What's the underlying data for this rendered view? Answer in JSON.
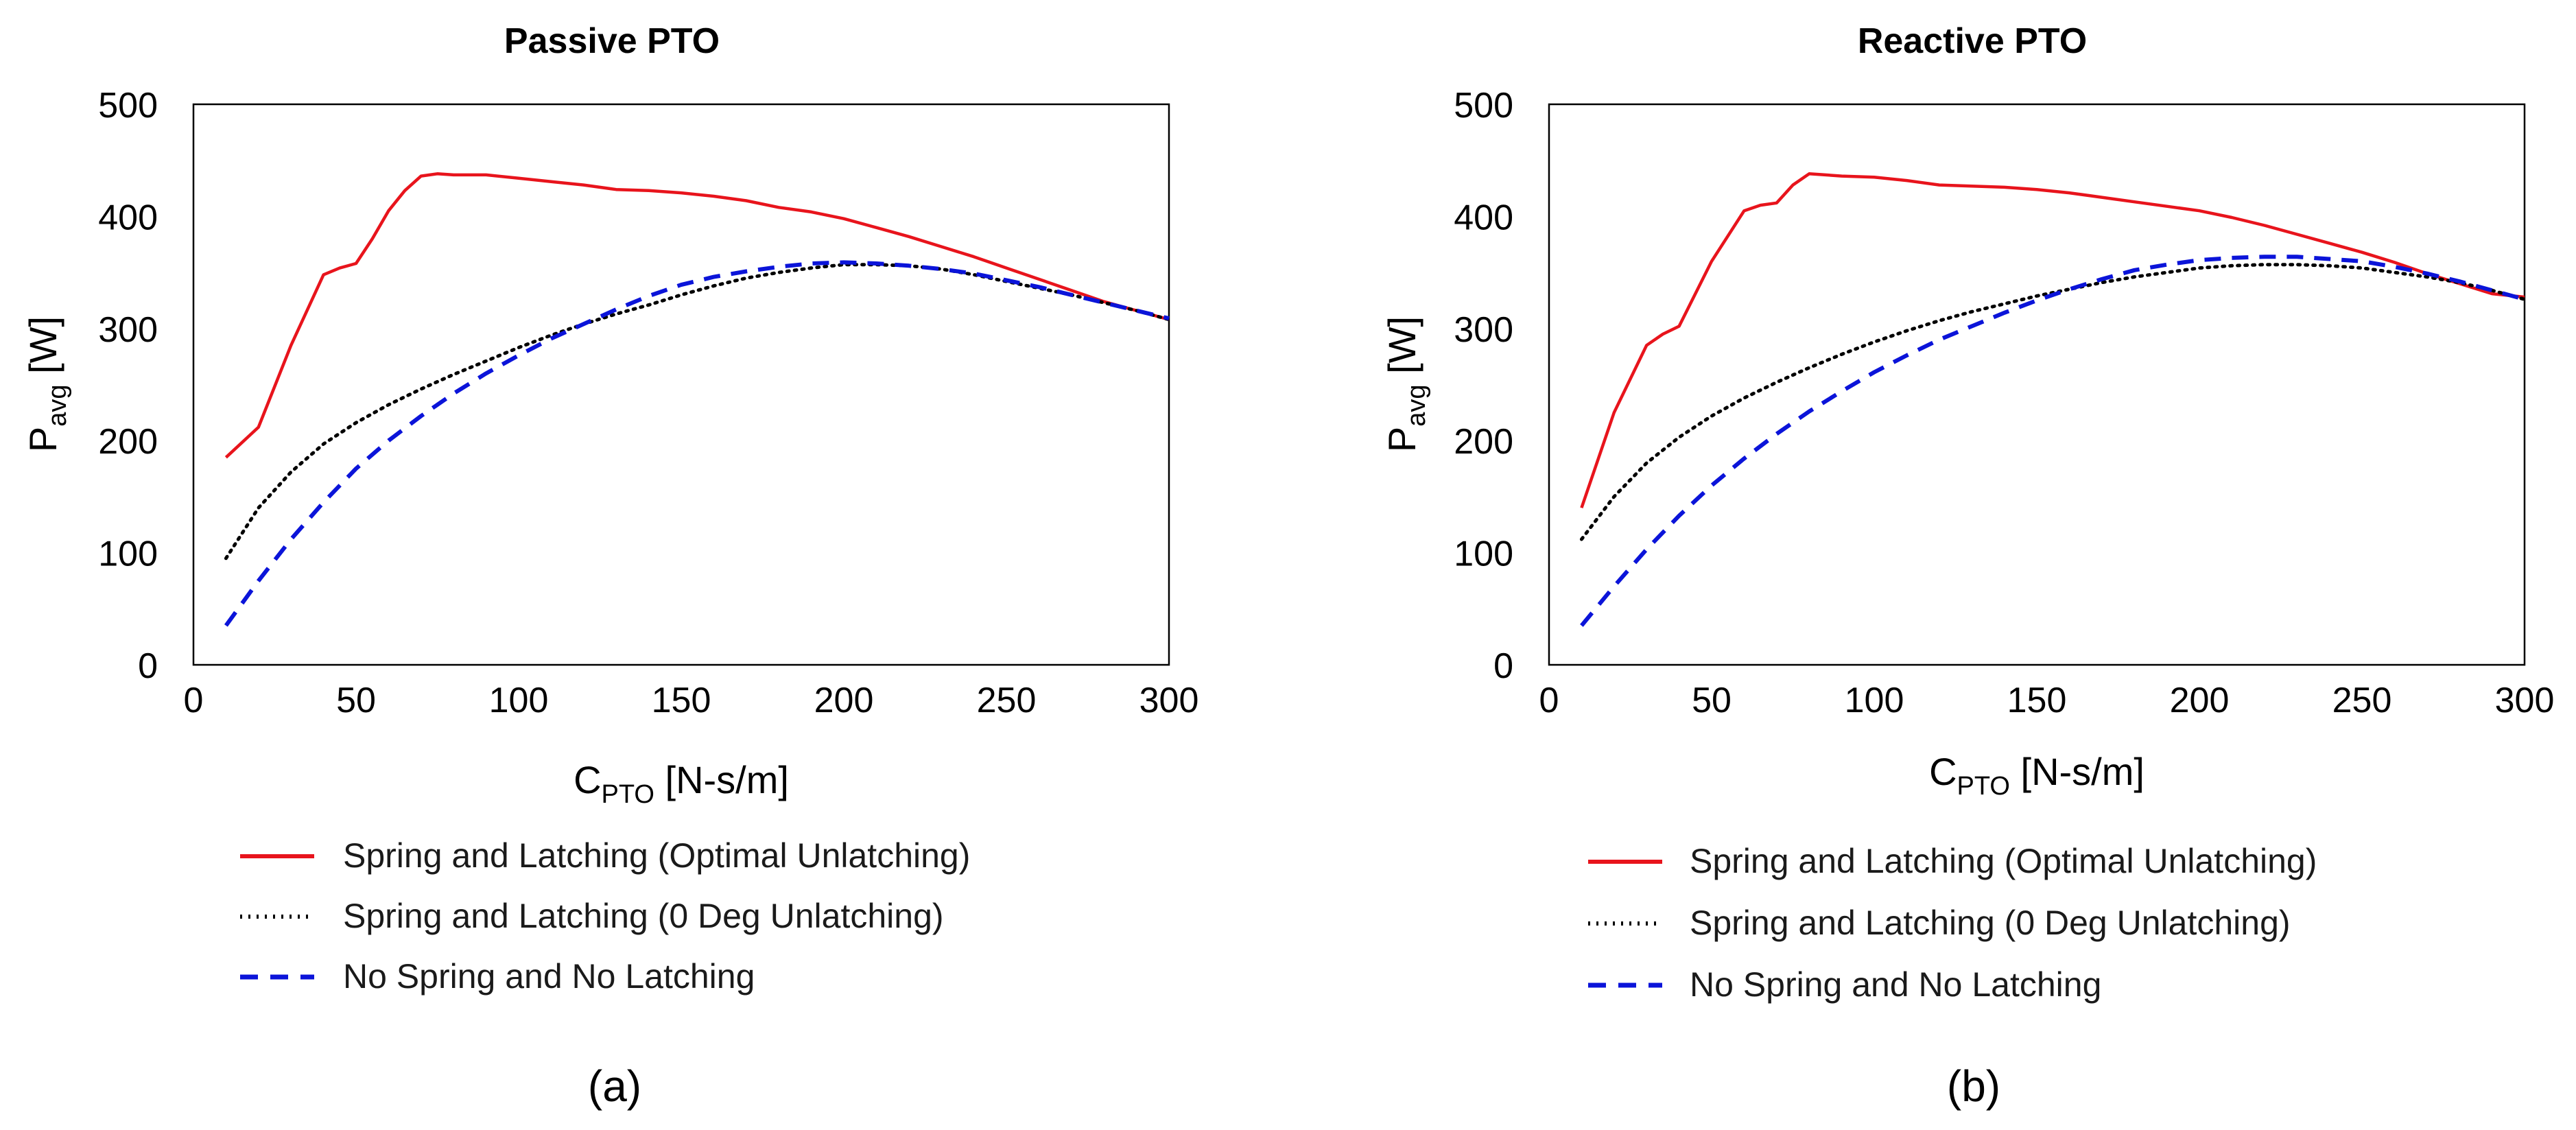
{
  "figure": {
    "background": "#ffffff"
  },
  "chart_data": [
    {
      "type": "line",
      "panel_label": "(a)",
      "title": "Passive PTO",
      "ylabel_main": "P",
      "ylabel_sub": "avg",
      "ylabel_unit": " [W]",
      "xlabel_main": "C",
      "xlabel_sub": "PTO",
      "xlabel_unit": " [N-s/m]",
      "xlim": [
        0,
        300
      ],
      "ylim": [
        0,
        500
      ],
      "xticks": [
        0,
        50,
        100,
        150,
        200,
        250,
        300
      ],
      "yticks": [
        0,
        100,
        200,
        300,
        400,
        500
      ],
      "grid": false,
      "legend_position": "below",
      "series": [
        {
          "name": "Spring and Latching (Optimal Unlatching)",
          "color": "#e8141c",
          "style": "solid",
          "x": [
            10,
            20,
            30,
            40,
            45,
            50,
            55,
            60,
            65,
            70,
            75,
            80,
            90,
            100,
            110,
            120,
            130,
            140,
            150,
            160,
            170,
            180,
            190,
            200,
            210,
            220,
            230,
            240,
            250,
            260,
            270,
            280,
            290,
            300
          ],
          "y": [
            185,
            212,
            285,
            348,
            354,
            358,
            380,
            405,
            423,
            436,
            438,
            437,
            437,
            434,
            431,
            428,
            424,
            423,
            421,
            418,
            414,
            408,
            404,
            398,
            390,
            382,
            373,
            364,
            354,
            344,
            334,
            324,
            316,
            308
          ]
        },
        {
          "name": "Spring and Latching (0 Deg Unlatching)",
          "color": "#000000",
          "style": "dotted",
          "x": [
            10,
            20,
            30,
            40,
            50,
            60,
            70,
            80,
            90,
            100,
            110,
            120,
            130,
            140,
            150,
            160,
            170,
            180,
            190,
            200,
            210,
            220,
            230,
            240,
            250,
            260,
            270,
            280,
            290,
            300
          ],
          "y": [
            95,
            140,
            172,
            197,
            216,
            232,
            246,
            259,
            271,
            283,
            294,
            304,
            313,
            321,
            330,
            338,
            345,
            350,
            354,
            357,
            357,
            356,
            353,
            348,
            342,
            336,
            330,
            323,
            316,
            308
          ]
        },
        {
          "name": "No Spring and No Latching",
          "color": "#0b14d9",
          "style": "dashed",
          "x": [
            10,
            20,
            30,
            40,
            50,
            60,
            70,
            80,
            90,
            100,
            110,
            120,
            130,
            140,
            150,
            160,
            170,
            180,
            190,
            200,
            210,
            220,
            230,
            240,
            250,
            260,
            270,
            280,
            290,
            300
          ],
          "y": [
            35,
            75,
            112,
            145,
            175,
            200,
            222,
            242,
            260,
            276,
            291,
            304,
            317,
            329,
            339,
            346,
            351,
            355,
            358,
            359,
            358,
            356,
            353,
            349,
            343,
            337,
            330,
            323,
            316,
            309
          ]
        }
      ]
    },
    {
      "type": "line",
      "panel_label": "(b)",
      "title": "Reactive PTO",
      "ylabel_main": "P",
      "ylabel_sub": "avg",
      "ylabel_unit": " [W]",
      "xlabel_main": "C",
      "xlabel_sub": "PTO",
      "xlabel_unit": " [N-s/m]",
      "xlim": [
        0,
        300
      ],
      "ylim": [
        0,
        500
      ],
      "xticks": [
        0,
        50,
        100,
        150,
        200,
        250,
        300
      ],
      "yticks": [
        0,
        100,
        200,
        300,
        400,
        500
      ],
      "grid": false,
      "legend_position": "below",
      "series": [
        {
          "name": "Spring and Latching (Optimal Unlatching)",
          "color": "#e8141c",
          "style": "solid",
          "x": [
            10,
            20,
            30,
            35,
            40,
            50,
            60,
            65,
            70,
            75,
            80,
            85,
            90,
            100,
            110,
            120,
            130,
            140,
            150,
            160,
            170,
            180,
            190,
            200,
            210,
            220,
            230,
            240,
            250,
            260,
            270,
            280,
            290,
            300
          ],
          "y": [
            140,
            225,
            285,
            295,
            302,
            360,
            405,
            410,
            412,
            428,
            438,
            437,
            436,
            435,
            432,
            428,
            427,
            426,
            424,
            421,
            417,
            413,
            409,
            405,
            399,
            392,
            384,
            376,
            368,
            359,
            349,
            340,
            331,
            328
          ]
        },
        {
          "name": "Spring and Latching (0 Deg Unlatching)",
          "color": "#000000",
          "style": "dotted",
          "x": [
            10,
            20,
            30,
            40,
            50,
            60,
            70,
            80,
            90,
            100,
            110,
            120,
            130,
            140,
            150,
            160,
            170,
            180,
            190,
            200,
            210,
            220,
            230,
            240,
            250,
            260,
            270,
            280,
            290,
            300
          ],
          "y": [
            112,
            150,
            180,
            203,
            222,
            238,
            252,
            265,
            277,
            288,
            298,
            307,
            315,
            322,
            329,
            335,
            341,
            346,
            350,
            354,
            356,
            357,
            357,
            356,
            354,
            350,
            346,
            341,
            334,
            326
          ]
        },
        {
          "name": "No Spring and No Latching",
          "color": "#0b14d9",
          "style": "dashed",
          "x": [
            10,
            20,
            30,
            40,
            50,
            60,
            70,
            80,
            90,
            100,
            110,
            120,
            130,
            140,
            150,
            160,
            170,
            180,
            190,
            200,
            210,
            220,
            230,
            240,
            250,
            260,
            270,
            280,
            290,
            300
          ],
          "y": [
            35,
            70,
            103,
            133,
            160,
            184,
            206,
            226,
            244,
            261,
            276,
            290,
            302,
            314,
            325,
            335,
            344,
            352,
            357,
            361,
            363,
            364,
            364,
            362,
            360,
            355,
            349,
            342,
            334,
            326
          ]
        }
      ]
    }
  ]
}
